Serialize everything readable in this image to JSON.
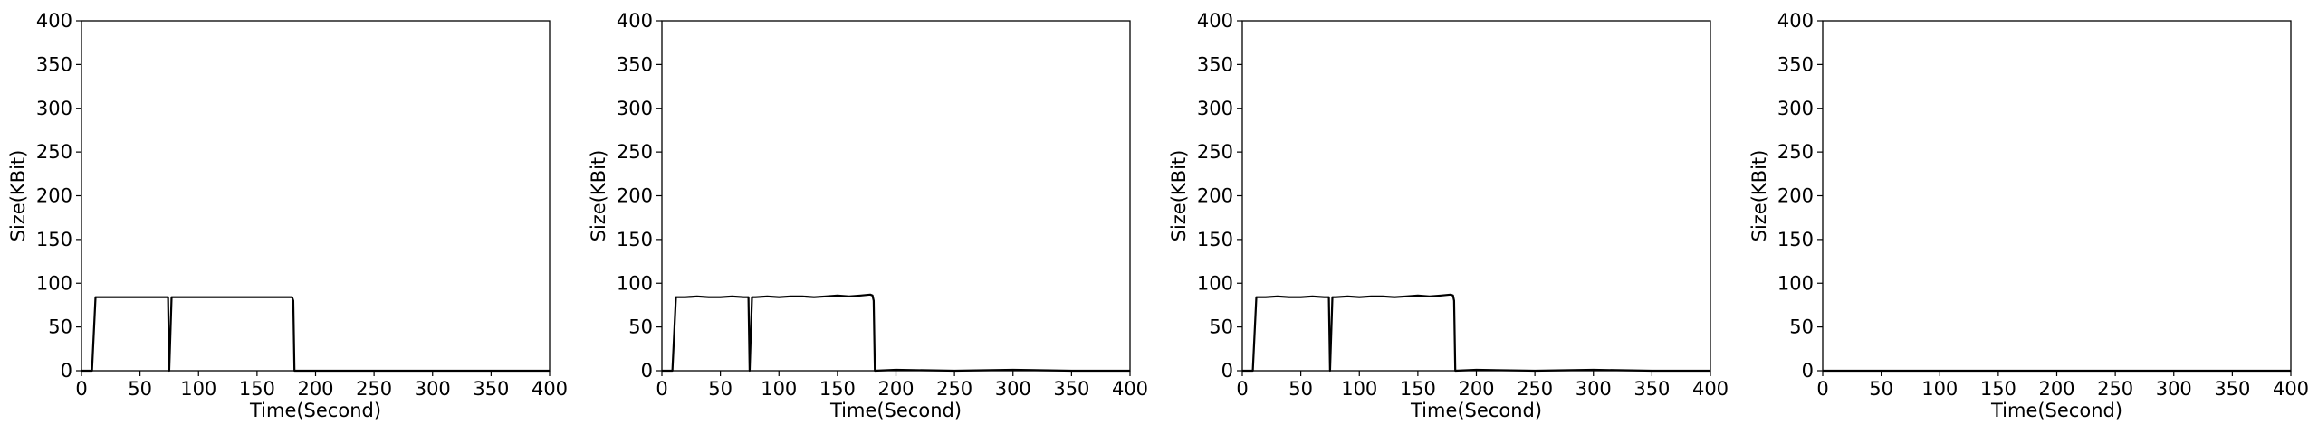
{
  "chart_data": [
    {
      "type": "line",
      "title": "",
      "xlabel": "Time(Second)",
      "ylabel": "Size(KBit)",
      "xlim": [
        0,
        400
      ],
      "ylim": [
        0,
        400
      ],
      "xticks": [
        0,
        50,
        100,
        150,
        200,
        250,
        300,
        350,
        400
      ],
      "yticks": [
        0,
        50,
        100,
        150,
        200,
        250,
        300,
        350,
        400
      ],
      "grid": false,
      "line_color": "#000000",
      "series": [
        {
          "x": [
            0,
            9,
            12,
            74,
            75,
            77,
            80,
            180,
            181,
            182,
            400
          ],
          "y": [
            0,
            0,
            84,
            84,
            0,
            84,
            84,
            84,
            80,
            0,
            0
          ]
        }
      ]
    },
    {
      "type": "line",
      "title": "",
      "xlabel": "Time(Second)",
      "ylabel": "Size(KBit)",
      "xlim": [
        0,
        400
      ],
      "ylim": [
        0,
        400
      ],
      "xticks": [
        0,
        50,
        100,
        150,
        200,
        250,
        300,
        350,
        400
      ],
      "yticks": [
        0,
        50,
        100,
        150,
        200,
        250,
        300,
        350,
        400
      ],
      "grid": false,
      "line_color": "#000000",
      "series": [
        {
          "x": [
            0,
            9,
            12,
            20,
            30,
            40,
            50,
            60,
            70,
            74,
            75,
            77,
            80,
            90,
            100,
            110,
            120,
            130,
            140,
            150,
            160,
            170,
            178,
            180,
            181,
            182,
            200,
            250,
            300,
            350,
            400
          ],
          "y": [
            0,
            0,
            84,
            84,
            85,
            84,
            84,
            85,
            84,
            84,
            0,
            84,
            84,
            85,
            84,
            85,
            85,
            84,
            85,
            86,
            85,
            86,
            87,
            86,
            80,
            0,
            1,
            0,
            1,
            0,
            0
          ]
        }
      ]
    },
    {
      "type": "line",
      "title": "",
      "xlabel": "Time(Second)",
      "ylabel": "Size(KBit)",
      "xlim": [
        0,
        400
      ],
      "ylim": [
        0,
        400
      ],
      "xticks": [
        0,
        50,
        100,
        150,
        200,
        250,
        300,
        350,
        400
      ],
      "yticks": [
        0,
        50,
        100,
        150,
        200,
        250,
        300,
        350,
        400
      ],
      "grid": false,
      "line_color": "#000000",
      "series": [
        {
          "x": [
            0,
            9,
            12,
            20,
            30,
            40,
            50,
            60,
            70,
            74,
            75,
            77,
            80,
            90,
            100,
            110,
            120,
            130,
            140,
            150,
            160,
            170,
            178,
            180,
            181,
            182,
            200,
            250,
            300,
            350,
            400
          ],
          "y": [
            0,
            0,
            84,
            84,
            85,
            84,
            84,
            85,
            84,
            84,
            0,
            84,
            84,
            85,
            84,
            85,
            85,
            84,
            85,
            86,
            85,
            86,
            87,
            86,
            80,
            0,
            1,
            0,
            1,
            0,
            0
          ]
        }
      ]
    },
    {
      "type": "line",
      "title": "",
      "xlabel": "Time(Second)",
      "ylabel": "Size(KBit)",
      "xlim": [
        0,
        400
      ],
      "ylim": [
        0,
        400
      ],
      "xticks": [
        0,
        50,
        100,
        150,
        200,
        250,
        300,
        350,
        400
      ],
      "yticks": [
        0,
        50,
        100,
        150,
        200,
        250,
        300,
        350,
        400
      ],
      "grid": false,
      "line_color": "#000000",
      "series": [
        {
          "x": [
            0,
            400
          ],
          "y": [
            0,
            0
          ]
        }
      ]
    }
  ]
}
